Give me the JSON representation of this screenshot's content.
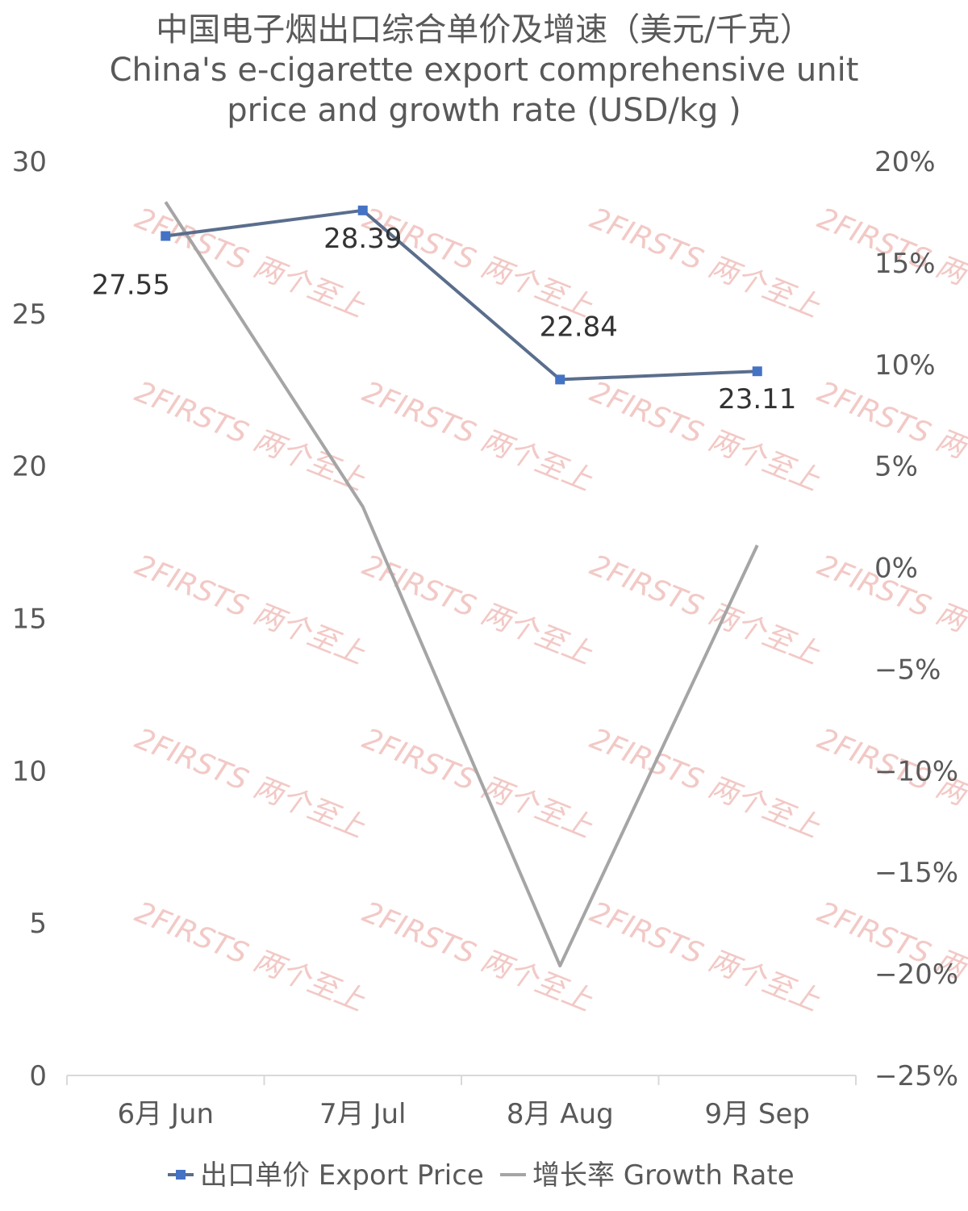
{
  "chart_data": {
    "type": "line",
    "title_lines": [
      "中国电子烟出口综合单价及增速（美元/千克）",
      "China's e-cigarette export comprehensive unit",
      "price and growth rate (USD/kg )"
    ],
    "categories": [
      "6月 Jun",
      "7月 Jul",
      "8月 Aug",
      "9月 Sep"
    ],
    "y_left": {
      "ticks": [
        "0",
        "5",
        "10",
        "15",
        "20",
        "25",
        "30"
      ],
      "range": [
        0,
        30
      ]
    },
    "y_right": {
      "ticks": [
        "−25%",
        "−20%",
        "−15%",
        "−10%",
        "−5%",
        "0%",
        "5%",
        "10%",
        "15%",
        "20%"
      ],
      "range": [
        -25,
        20
      ]
    },
    "series": [
      {
        "name": "出口单价 Export Price",
        "axis": "left",
        "color": "#5a6e8c",
        "marker_color": "#4472c4",
        "values": [
          27.55,
          28.39,
          22.84,
          23.11
        ],
        "labels": [
          "27.55",
          "28.39",
          "22.84",
          "23.11"
        ]
      },
      {
        "name": "增长率 Growth Rate",
        "axis": "right",
        "color": "#a5a5a5",
        "values": [
          18.0,
          3.0,
          -19.6,
          1.1
        ]
      }
    ],
    "legend_position": "bottom",
    "grid": false
  },
  "watermark": {
    "text": "2FIRSTS 两个至上"
  }
}
